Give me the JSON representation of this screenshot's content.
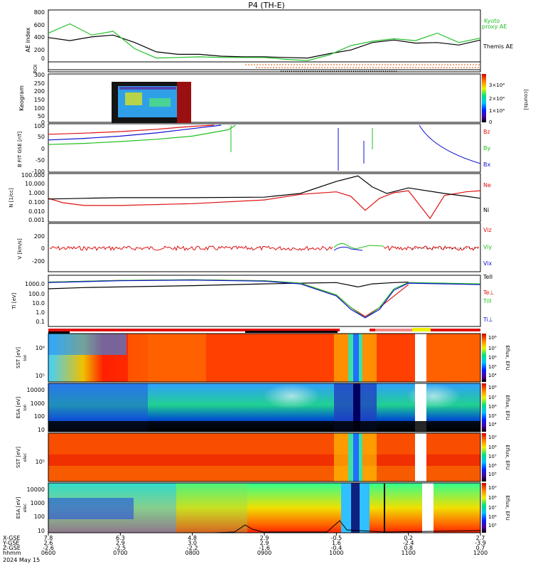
{
  "title": "P4 (TH-E)",
  "colors": {
    "themis_ae": "#000000",
    "kyoto_ae": "#22c02a",
    "bz": "#e01010",
    "by": "#20c020",
    "bx": "#1010d0",
    "ne": "#e01010",
    "ni": "#000000",
    "tele": "#000000",
    "teperp": "#e01010",
    "tipar": "#20c020",
    "tiperp": "#1010d0"
  },
  "footer": {
    "row_labels": [
      "X-GSE",
      "Y-GSE",
      "Z-GSE",
      "hhmm",
      "2024 May 15"
    ],
    "columns": [
      {
        "x": "7.8",
        "y": "2.6",
        "z": "-2.6",
        "t": "0600"
      },
      {
        "x": "6.3",
        "y": "2.9",
        "z": "-2.5",
        "t": "0700"
      },
      {
        "x": "4.8",
        "y": "3.0",
        "z": "-2.2",
        "t": "0800"
      },
      {
        "x": "2.9",
        "y": "2.9",
        "z": "-1.6",
        "t": "0900"
      },
      {
        "x": "-0.5",
        "y": "1.6",
        "z": "-0.4",
        "t": "1000"
      },
      {
        "x": "0.2",
        "y": "-2.4",
        "z": "0.8",
        "t": "1100"
      },
      {
        "x": "2.7",
        "y": "-3.9",
        "z": "0.7",
        "t": "1200"
      }
    ]
  },
  "chart_data": [
    {
      "type": "line",
      "panel": "AE index",
      "ylabel": "AE index",
      "ylim": [
        0,
        800
      ],
      "yticks": [
        "800",
        "600",
        "400",
        "200",
        "0"
      ],
      "x_range_hours": [
        6,
        12
      ],
      "series": [
        {
          "name": "Themis AE",
          "x": [
            6.0,
            6.3,
            6.6,
            6.9,
            7.2,
            7.5,
            7.8,
            8.1,
            8.4,
            8.7,
            9.0,
            9.3,
            9.6,
            9.9,
            10.2,
            10.5,
            10.8,
            11.1,
            11.4,
            11.7,
            12.0
          ],
          "values": [
            380,
            330,
            390,
            420,
            300,
            150,
            110,
            110,
            80,
            70,
            70,
            60,
            50,
            120,
            180,
            300,
            340,
            290,
            300,
            260,
            340
          ]
        },
        {
          "name": "Kyoto proxy AE",
          "x": [
            6.0,
            6.3,
            6.6,
            6.9,
            7.2,
            7.5,
            7.8,
            8.1,
            8.4,
            8.7,
            9.0,
            9.3,
            9.6,
            9.9,
            10.2,
            10.5,
            10.8,
            11.1,
            11.4,
            11.7,
            12.0
          ],
          "values": [
            450,
            600,
            420,
            480,
            200,
            50,
            60,
            70,
            60,
            60,
            60,
            30,
            10,
            100,
            250,
            320,
            360,
            330,
            450,
            300,
            370
          ]
        }
      ]
    },
    {
      "type": "heatmap",
      "panel": "Keogram",
      "ylabel": "Keogram",
      "ylim": [
        0,
        300
      ],
      "yticks": [
        "300",
        "250",
        "200",
        "150",
        "100",
        "50",
        "0"
      ],
      "colorbar": {
        "label": "[counts]",
        "ticks": [
          "3×10⁴",
          "2×10⁴",
          "1×10⁴",
          "0"
        ]
      }
    },
    {
      "type": "line",
      "panel": "B FIT",
      "ylabel": "B FIT GSE [nT]",
      "ylim": [
        -100,
        100
      ],
      "yticks": [
        "100",
        "50",
        "0",
        "-50",
        "-100"
      ],
      "series": [
        {
          "name": "Bz",
          "x": [
            6.0,
            6.5,
            7.0,
            7.5,
            8.0,
            8.3
          ],
          "values": [
            60,
            65,
            72,
            82,
            95,
            100
          ]
        },
        {
          "name": "By",
          "x": [
            6.0,
            6.5,
            7.0,
            7.5,
            8.0,
            8.5,
            8.6
          ],
          "values": [
            15,
            20,
            28,
            38,
            52,
            80,
            100
          ]
        },
        {
          "name": "Bx",
          "x": [
            6.0,
            6.5,
            7.0,
            7.5,
            8.0,
            8.4
          ],
          "values": [
            35,
            42,
            52,
            66,
            85,
            100
          ]
        }
      ]
    },
    {
      "type": "line",
      "panel": "Density",
      "scale": "log",
      "ylabel": "N [1/cc]",
      "ylim": [
        0.001,
        100
      ],
      "yticks": [
        "100.000",
        "10.000",
        "1.000",
        "0.100",
        "0.010",
        "0.001"
      ],
      "series": [
        {
          "name": "Ne",
          "x": [
            6.0,
            6.2,
            6.5,
            7.0,
            8.0,
            9.0,
            9.5,
            10.0,
            10.2,
            10.4,
            10.6,
            10.8,
            11.0,
            11.3,
            11.5,
            11.8,
            12.0
          ],
          "values": [
            0.3,
            0.1,
            0.05,
            0.05,
            0.08,
            0.2,
            0.8,
            1.5,
            0.5,
            0.015,
            0.3,
            1.2,
            2.0,
            0.002,
            0.6,
            1.5,
            2.0
          ]
        },
        {
          "name": "Ni",
          "x": [
            6.0,
            6.5,
            7.0,
            8.0,
            9.0,
            9.5,
            10.0,
            10.3,
            10.5,
            10.7,
            11.0,
            11.5,
            11.8,
            12.0
          ],
          "values": [
            0.25,
            0.3,
            0.35,
            0.35,
            0.4,
            1.0,
            20,
            80,
            5,
            1.0,
            4,
            1.0,
            0.5,
            0.3
          ]
        }
      ]
    },
    {
      "type": "line",
      "panel": "Velocity",
      "ylabel": "V [km/s]",
      "ylim": [
        -400,
        400
      ],
      "yticks": [
        "200",
        "0",
        "-200"
      ],
      "series": [
        {
          "name": "Viz",
          "x": [
            6,
            12
          ],
          "values": [
            0,
            0
          ]
        },
        {
          "name": "Viy",
          "x": [
            6,
            12
          ],
          "values": [
            0,
            0
          ]
        },
        {
          "name": "Vix",
          "x": [
            6,
            12
          ],
          "values": [
            0,
            0
          ]
        }
      ]
    },
    {
      "type": "line",
      "panel": "Temperature",
      "scale": "log",
      "ylabel": "Ti [eV]",
      "ylim": [
        0.05,
        3000
      ],
      "yticks": [
        "1000.0",
        "100.0",
        "10.0",
        "1.0",
        "0.1"
      ],
      "series": [
        {
          "name": "TeII",
          "x": [
            6.0,
            6.5,
            7.0,
            8.0,
            9.0,
            9.5,
            10.0,
            10.3,
            10.5,
            10.8,
            11.0
          ],
          "values": [
            200,
            260,
            300,
            400,
            600,
            700,
            800,
            300,
            600,
            800,
            900
          ]
        },
        {
          "name": "Te⊥",
          "x": [
            6.0,
            7.0,
            8.0,
            9.0,
            9.5,
            10.0,
            10.2,
            10.4,
            10.6,
            11.0
          ],
          "values": [
            900,
            1300,
            1500,
            1200,
            700,
            50,
            3,
            0.4,
            3,
            500
          ]
        },
        {
          "name": "TiII",
          "x": [
            6.0,
            7.0,
            8.0,
            9.0,
            9.5,
            10.0,
            10.2,
            10.4,
            10.6,
            10.8,
            11.0,
            11.5,
            12.0
          ],
          "values": [
            900,
            1300,
            1500,
            1200,
            700,
            50,
            3,
            0.3,
            3,
            200,
            800,
            700,
            600
          ]
        },
        {
          "name": "Ti⊥",
          "x": [
            6.0,
            7.0,
            8.0,
            9.0,
            9.5,
            10.0,
            10.2,
            10.4,
            10.6,
            10.8,
            11.0,
            11.5,
            12.0
          ],
          "values": [
            800,
            1200,
            1400,
            1100,
            600,
            40,
            2,
            0.3,
            2,
            150,
            700,
            600,
            500
          ]
        }
      ]
    },
    {
      "type": "heatmap",
      "panel": "SST ion",
      "ylabel": "SST [eV]",
      "yticks": [
        "10⁶",
        "10⁵"
      ],
      "colorbar": {
        "label": "Eflux, EFU",
        "ticks": [
          "10⁸",
          "10⁷",
          "10⁶",
          "10⁵",
          "10⁴",
          "10³"
        ]
      }
    },
    {
      "type": "heatmap",
      "panel": "ESA ion",
      "ylabel": "ESA [eV]",
      "yticks": [
        "10000",
        "1000",
        "100",
        "10"
      ],
      "colorbar": {
        "label": "Eflux, EFU",
        "ticks": [
          "10⁸",
          "10⁷",
          "10⁶",
          "10⁵",
          "10⁴",
          "10³"
        ]
      }
    },
    {
      "type": "heatmap",
      "panel": "SST electron",
      "ylabel": "SST [eV]",
      "yticks": [
        "10⁵"
      ],
      "colorbar": {
        "label": "Eflux, EFU",
        "ticks": [
          "10⁹",
          "10⁸",
          "10⁷",
          "10⁶",
          "10⁵",
          "10⁴"
        ]
      }
    },
    {
      "type": "heatmap",
      "panel": "ESA electron",
      "ylabel": "ESA [eV]",
      "yticks": [
        "10000",
        "1000",
        "100",
        "10"
      ],
      "colorbar": {
        "label": "Eflux, EFU",
        "ticks": [
          "10⁹",
          "10⁸",
          "10⁷",
          "10⁶",
          "10⁵",
          "10⁴"
        ]
      }
    }
  ],
  "legends": {
    "ae": [
      "Kyoto",
      "proxy AE",
      "Themis AE"
    ],
    "b": [
      "Bz",
      "By",
      "Bx"
    ],
    "n": [
      "Ne",
      "Ni"
    ],
    "v": [
      "Viz",
      "Viy",
      "Vix"
    ],
    "t": [
      "TeII",
      "Te⊥",
      "TiII",
      "Ti⊥"
    ]
  },
  "labels": {
    "roi": "ROI",
    "sst_sub": "ion",
    "esa_sub": "ion",
    "sste_sub": "elec",
    "esae_sub": "elec",
    "b_unit": "[nT]",
    "n_unit": "[1/cc]",
    "v_unit": "[km/s]",
    "t_unit": "[eV]",
    "sst_unit": "[eV]",
    "esa_unit": "[eV]"
  }
}
